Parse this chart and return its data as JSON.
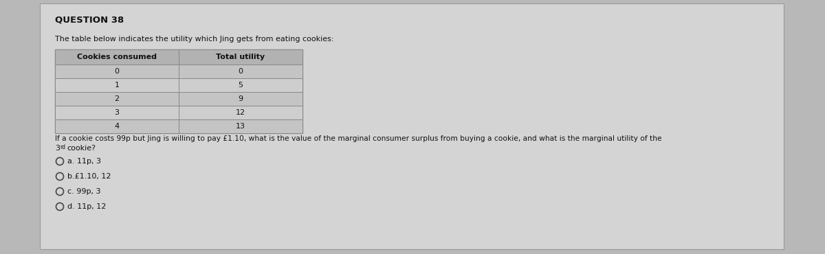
{
  "title": "QUESTION 38",
  "subtitle": "The table below indicates the utility which Jing gets from eating cookies:",
  "table_headers": [
    "Cookies consumed",
    "Total utility"
  ],
  "table_data": [
    [
      "0",
      "0"
    ],
    [
      "1",
      "5"
    ],
    [
      "2",
      "9"
    ],
    [
      "3",
      "12"
    ],
    [
      "4",
      "13"
    ]
  ],
  "question_line1": "If a cookie costs 99p but Jing is willing to pay £1.10, what is the value of the marginal consumer surplus from buying a cookie, and what is the marginal utility of the",
  "question_line2": "cookie?",
  "question_superscript": "rd",
  "question_number": "3",
  "options": [
    "a. 11p, 3",
    "b.£1.10, 12",
    "c. 99p, 3",
    "d. 11p, 12"
  ],
  "bg_color": "#b8b8b8",
  "panel_color": "#d4d4d4",
  "table_header_bg": "#b2b2b2",
  "table_row_bg1": "#c4c4c4",
  "table_row_bg2": "#cecece",
  "table_border_color": "#888888",
  "text_color": "#111111",
  "title_fontsize": 9.5,
  "body_fontsize": 8.0,
  "table_fontsize": 8.0
}
